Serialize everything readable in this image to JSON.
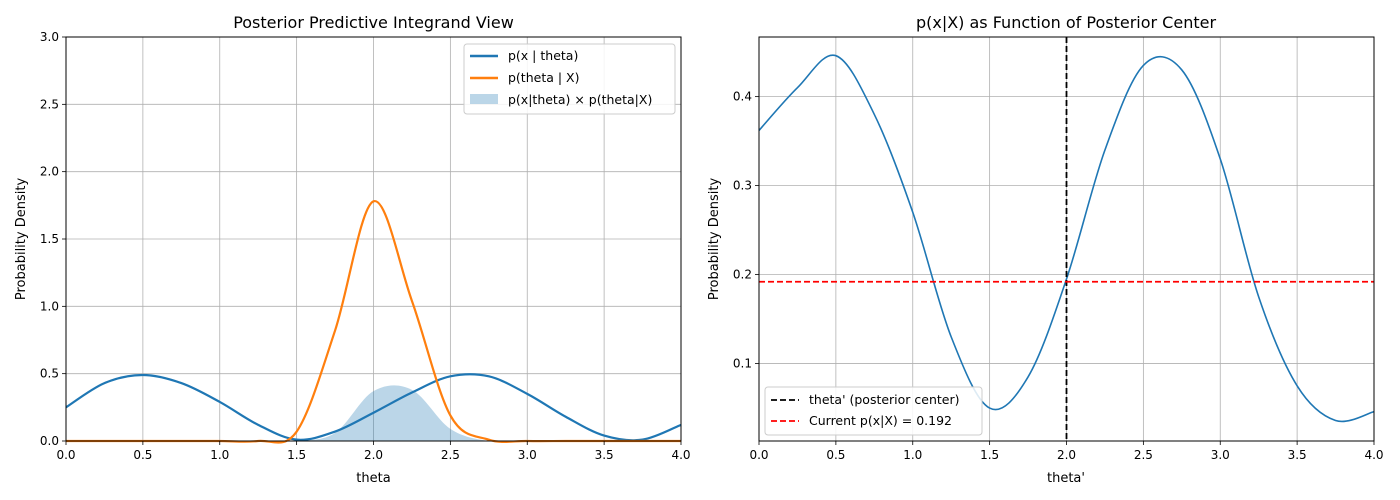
{
  "chart_data": [
    {
      "type": "line",
      "title": "Posterior Predictive Integrand View",
      "xlabel": "theta",
      "ylabel": "Probability Density",
      "xlim": [
        0,
        4
      ],
      "ylim": [
        0,
        3
      ],
      "xticks": [
        "0.0",
        "0.5",
        "1.0",
        "1.5",
        "2.0",
        "2.5",
        "3.0",
        "3.5",
        "4.0"
      ],
      "yticks": [
        "0.0",
        "0.5",
        "1.0",
        "1.5",
        "2.0",
        "2.5",
        "3.0"
      ],
      "grid": true,
      "legend_position": "top-right",
      "x": [
        0,
        0.25,
        0.5,
        0.75,
        1.0,
        1.25,
        1.5,
        1.75,
        2.0,
        2.25,
        2.5,
        2.75,
        3.0,
        3.25,
        3.5,
        3.75,
        4.0
      ],
      "series": [
        {
          "name": "p(x | theta)",
          "color": "#1f77b4",
          "kind": "line",
          "values": [
            0.25,
            0.43,
            0.49,
            0.43,
            0.29,
            0.12,
            0.01,
            0.07,
            0.21,
            0.36,
            0.48,
            0.48,
            0.35,
            0.18,
            0.04,
            0.01,
            0.12
          ]
        },
        {
          "name": "p(theta | X)",
          "color": "#ff7f0e",
          "kind": "line",
          "values": [
            0,
            0,
            0,
            0,
            0,
            0.0,
            0.07,
            0.82,
            1.78,
            1.04,
            0.19,
            0.01,
            0,
            0,
            0,
            0,
            0
          ]
        },
        {
          "name": "p(x|theta) × p(theta|X)",
          "color": "#1f77b4",
          "opacity": 0.3,
          "kind": "area",
          "values": [
            0,
            0,
            0,
            0,
            0,
            0,
            0.0,
            0.06,
            0.37,
            0.38,
            0.09,
            0.0,
            0,
            0,
            0,
            0,
            0
          ]
        }
      ]
    },
    {
      "type": "line",
      "title": "p(x|X) as Function of Posterior Center",
      "xlabel": "theta'",
      "ylabel": "Probability Density",
      "xlim": [
        0,
        4
      ],
      "ylim": [
        0.013,
        0.467
      ],
      "xticks": [
        "0.0",
        "0.5",
        "1.0",
        "1.5",
        "2.0",
        "2.5",
        "3.0",
        "3.5",
        "4.0"
      ],
      "yticks": [
        "0.1",
        "0.2",
        "0.3",
        "0.4"
      ],
      "ytick_values": [
        0.1,
        0.2,
        0.3,
        0.4
      ],
      "grid": true,
      "legend_position": "bottom-left",
      "x": [
        0,
        0.25,
        0.5,
        0.75,
        1.0,
        1.25,
        1.5,
        1.75,
        2.0,
        2.25,
        2.5,
        2.75,
        3.0,
        3.25,
        3.5,
        3.75,
        4.0
      ],
      "series": [
        {
          "name": "",
          "color": "#1f77b4",
          "values": [
            0.362,
            0.41,
            0.446,
            0.38,
            0.27,
            0.13,
            0.05,
            0.085,
            0.195,
            0.34,
            0.435,
            0.43,
            0.33,
            0.175,
            0.075,
            0.036,
            0.046
          ]
        }
      ],
      "vline": {
        "x": 2.0,
        "label": "theta' (posterior center)",
        "color": "#000000"
      },
      "hline": {
        "y": 0.192,
        "label": "Current p(x|X) = 0.192",
        "color": "#ff0000"
      }
    }
  ]
}
